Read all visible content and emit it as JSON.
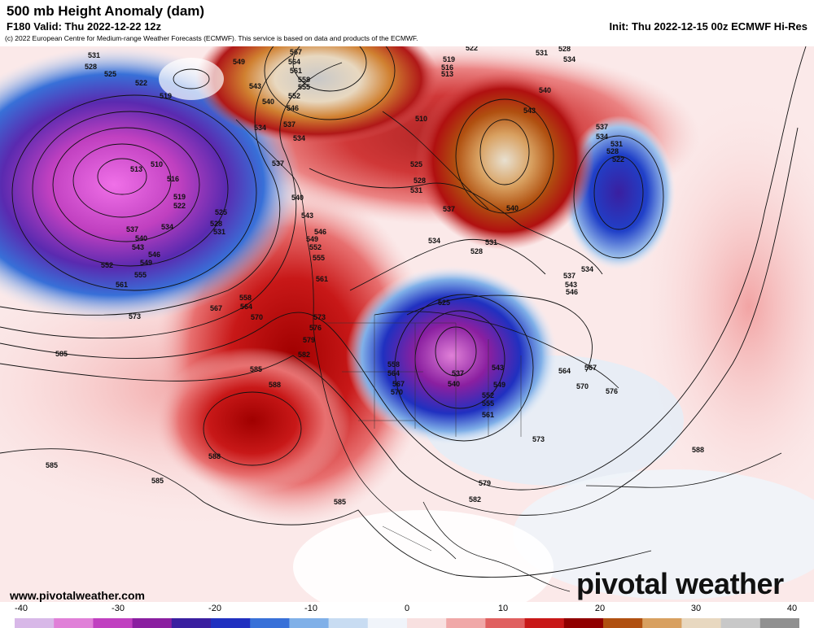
{
  "header": {
    "title": "500 mb Height Anomaly (dam)",
    "valid": "F180 Valid: Thu 2022-12-22 12z",
    "init": "Init: Thu 2022-12-15 00z ECMWF Hi-Res",
    "copyright": "(c) 2022 European Centre for Medium-range Weather Forecasts (ECMWF). This service is based on data and products of the ECMWF."
  },
  "footer": {
    "website": "www.pivotalweather.com",
    "brand": "pivotal weather"
  },
  "colorbar": {
    "ticks": [
      "-40",
      "-30",
      "-20",
      "-10",
      "0",
      "10",
      "20",
      "30",
      "40"
    ],
    "colors": [
      "#d8b8e8",
      "#e080d8",
      "#c040c0",
      "#8a1fa0",
      "#3a1fa0",
      "#2030c0",
      "#3870d8",
      "#80b0e8",
      "#c8dcf2",
      "#f0f4fa",
      "#f8e0e0",
      "#f0a8a8",
      "#e06060",
      "#c81818",
      "#900000",
      "#b05010",
      "#d8a060",
      "#e8d8c0",
      "#c8c8c8",
      "#909090"
    ]
  },
  "contour_labels": [
    {
      "text": "531"
    },
    {
      "text": "528"
    },
    {
      "text": "525"
    },
    {
      "text": "522"
    },
    {
      "text": "519"
    },
    {
      "text": "513"
    },
    {
      "text": "510"
    },
    {
      "text": "516"
    },
    {
      "text": "519"
    },
    {
      "text": "522"
    },
    {
      "text": "525"
    },
    {
      "text": "528"
    },
    {
      "text": "531"
    },
    {
      "text": "534"
    },
    {
      "text": "537"
    },
    {
      "text": "540"
    },
    {
      "text": "543"
    },
    {
      "text": "546"
    },
    {
      "text": "549"
    },
    {
      "text": "552"
    },
    {
      "text": "555"
    },
    {
      "text": "561"
    },
    {
      "text": "567"
    },
    {
      "text": "564"
    },
    {
      "text": "558"
    },
    {
      "text": "570"
    },
    {
      "text": "573"
    },
    {
      "text": "585"
    },
    {
      "text": "588"
    },
    {
      "text": "588"
    },
    {
      "text": "585"
    },
    {
      "text": "585"
    },
    {
      "text": "585"
    },
    {
      "text": "549"
    },
    {
      "text": "567"
    },
    {
      "text": "564"
    },
    {
      "text": "561"
    },
    {
      "text": "558"
    },
    {
      "text": "555"
    },
    {
      "text": "552"
    },
    {
      "text": "546"
    },
    {
      "text": "543"
    },
    {
      "text": "540"
    },
    {
      "text": "537"
    },
    {
      "text": "534"
    },
    {
      "text": "537"
    },
    {
      "text": "534"
    },
    {
      "text": "540"
    },
    {
      "text": "543"
    },
    {
      "text": "546"
    },
    {
      "text": "549"
    },
    {
      "text": "552"
    },
    {
      "text": "555"
    },
    {
      "text": "561"
    },
    {
      "text": "573"
    },
    {
      "text": "576"
    },
    {
      "text": "579"
    },
    {
      "text": "582"
    },
    {
      "text": "519"
    },
    {
      "text": "516"
    },
    {
      "text": "513"
    },
    {
      "text": "510"
    },
    {
      "text": "522"
    },
    {
      "text": "525"
    },
    {
      "text": "528"
    },
    {
      "text": "531"
    },
    {
      "text": "528"
    },
    {
      "text": "534"
    },
    {
      "text": "531"
    },
    {
      "text": "540"
    },
    {
      "text": "543"
    },
    {
      "text": "537"
    },
    {
      "text": "540"
    },
    {
      "text": "534"
    },
    {
      "text": "531"
    },
    {
      "text": "528"
    },
    {
      "text": "537"
    },
    {
      "text": "534"
    },
    {
      "text": "531"
    },
    {
      "text": "528"
    },
    {
      "text": "522"
    },
    {
      "text": "534"
    },
    {
      "text": "537"
    },
    {
      "text": "543"
    },
    {
      "text": "546"
    },
    {
      "text": "525"
    },
    {
      "text": "537"
    },
    {
      "text": "540"
    },
    {
      "text": "543"
    },
    {
      "text": "549"
    },
    {
      "text": "552"
    },
    {
      "text": "555"
    },
    {
      "text": "561"
    },
    {
      "text": "564"
    },
    {
      "text": "567"
    },
    {
      "text": "570"
    },
    {
      "text": "576"
    },
    {
      "text": "573"
    },
    {
      "text": "558"
    },
    {
      "text": "564"
    },
    {
      "text": "567"
    },
    {
      "text": "570"
    },
    {
      "text": "579"
    },
    {
      "text": "582"
    },
    {
      "text": "585"
    },
    {
      "text": "588"
    }
  ]
}
